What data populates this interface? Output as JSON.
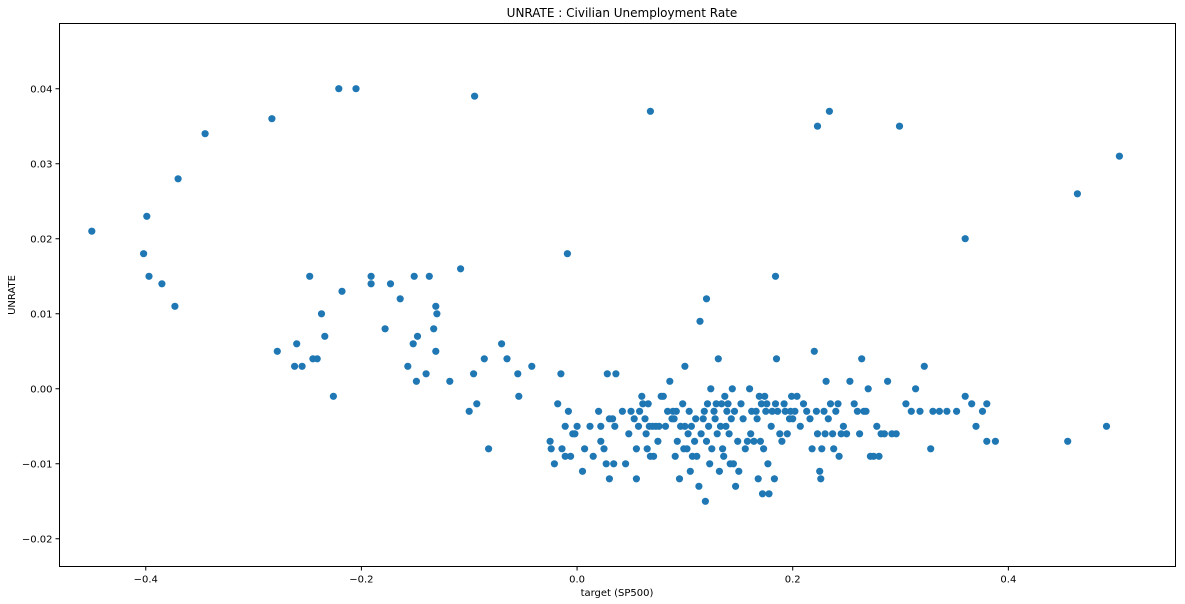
{
  "chart_data": {
    "type": "scatter",
    "title": "UNRATE :  Civilian Unemployment Rate",
    "xlabel": "target (SP500)",
    "ylabel": "UNRATE",
    "xlim": [
      -0.48,
      0.555
    ],
    "ylim": [
      -0.0237,
      0.0487
    ],
    "xticks": [
      -0.4,
      -0.2,
      0.0,
      0.2,
      0.4
    ],
    "xtick_labels": [
      "−0.4",
      "−0.2",
      "0.0",
      "0.2",
      "0.4"
    ],
    "yticks": [
      -0.02,
      -0.01,
      0.0,
      0.01,
      0.02,
      0.03,
      0.04
    ],
    "ytick_labels": [
      "−0.02",
      "−0.01",
      "0.00",
      "0.01",
      "0.02",
      "0.03",
      "0.04"
    ],
    "grid": false,
    "marker_color": "#1f77b4",
    "points": [
      [
        -0.45,
        0.021
      ],
      [
        -0.399,
        0.023
      ],
      [
        -0.402,
        0.018
      ],
      [
        -0.397,
        0.015
      ],
      [
        -0.385,
        0.014
      ],
      [
        -0.373,
        0.011
      ],
      [
        -0.37,
        0.028
      ],
      [
        -0.345,
        0.034
      ],
      [
        -0.283,
        0.036
      ],
      [
        -0.221,
        0.04
      ],
      [
        -0.205,
        0.04
      ],
      [
        -0.095,
        0.039
      ],
      [
        0.068,
        0.037
      ],
      [
        0.223,
        0.035
      ],
      [
        0.234,
        0.037
      ],
      [
        0.299,
        0.035
      ],
      [
        0.36,
        0.02
      ],
      [
        0.464,
        0.026
      ],
      [
        0.503,
        0.031
      ],
      [
        -0.248,
        0.015
      ],
      [
        -0.218,
        0.013
      ],
      [
        -0.191,
        0.015
      ],
      [
        -0.191,
        0.014
      ],
      [
        -0.173,
        0.014
      ],
      [
        -0.151,
        0.015
      ],
      [
        -0.137,
        0.015
      ],
      [
        -0.108,
        0.016
      ],
      [
        -0.009,
        0.018
      ],
      [
        0.12,
        0.012
      ],
      [
        0.114,
        0.009
      ],
      [
        0.184,
        0.015
      ],
      [
        -0.164,
        0.012
      ],
      [
        -0.131,
        0.011
      ],
      [
        -0.13,
        0.01
      ],
      [
        -0.133,
        0.008
      ],
      [
        -0.178,
        0.008
      ],
      [
        -0.148,
        0.007
      ],
      [
        -0.152,
        0.006
      ],
      [
        -0.237,
        0.01
      ],
      [
        -0.26,
        0.006
      ],
      [
        -0.234,
        0.007
      ],
      [
        -0.278,
        0.005
      ],
      [
        -0.245,
        0.004
      ],
      [
        -0.241,
        0.004
      ],
      [
        -0.262,
        0.003
      ],
      [
        -0.255,
        0.003
      ],
      [
        -0.226,
        -0.001
      ],
      [
        -0.157,
        0.003
      ],
      [
        -0.14,
        0.002
      ],
      [
        -0.131,
        0.005
      ],
      [
        -0.149,
        0.001
      ],
      [
        -0.118,
        0.001
      ],
      [
        -0.1,
        -0.003
      ],
      [
        -0.096,
        0.002
      ],
      [
        -0.093,
        -0.002
      ],
      [
        -0.086,
        0.004
      ],
      [
        -0.082,
        -0.008
      ],
      [
        -0.07,
        0.006
      ],
      [
        -0.065,
        0.004
      ],
      [
        -0.055,
        0.002
      ],
      [
        -0.054,
        -0.001
      ],
      [
        -0.042,
        0.003
      ],
      [
        -0.025,
        -0.007
      ],
      [
        -0.024,
        -0.008
      ],
      [
        -0.021,
        -0.01
      ],
      [
        -0.018,
        -0.002
      ],
      [
        -0.015,
        0.002
      ],
      [
        -0.014,
        -0.008
      ],
      [
        -0.011,
        -0.005
      ],
      [
        -0.011,
        -0.009
      ],
      [
        -0.008,
        -0.003
      ],
      [
        -0.006,
        -0.009
      ],
      [
        -0.004,
        -0.006
      ],
      [
        -0.002,
        -0.006
      ],
      [
        0.0,
        -0.005
      ],
      [
        0.005,
        -0.011
      ],
      [
        0.007,
        -0.008
      ],
      [
        0.012,
        -0.005
      ],
      [
        0.015,
        -0.009
      ],
      [
        0.02,
        -0.003
      ],
      [
        0.022,
        -0.005
      ],
      [
        0.022,
        -0.007
      ],
      [
        0.025,
        -0.008
      ],
      [
        0.027,
        -0.01
      ],
      [
        0.028,
        0.002
      ],
      [
        0.03,
        -0.004
      ],
      [
        0.03,
        -0.012
      ],
      [
        0.033,
        -0.004
      ],
      [
        0.034,
        -0.01
      ],
      [
        0.035,
        -0.005
      ],
      [
        0.036,
        0.002
      ],
      [
        0.042,
        -0.003
      ],
      [
        0.045,
        -0.01
      ],
      [
        0.048,
        -0.006
      ],
      [
        0.05,
        -0.003
      ],
      [
        0.053,
        -0.004
      ],
      [
        0.055,
        -0.012
      ],
      [
        0.055,
        -0.008
      ],
      [
        0.057,
        -0.005
      ],
      [
        0.058,
        -0.003
      ],
      [
        0.06,
        -0.001
      ],
      [
        0.061,
        -0.002
      ],
      [
        0.063,
        -0.004
      ],
      [
        0.064,
        -0.006
      ],
      [
        0.065,
        -0.008
      ],
      [
        0.066,
        -0.002
      ],
      [
        0.067,
        -0.005
      ],
      [
        0.068,
        -0.009
      ],
      [
        0.07,
        -0.005
      ],
      [
        0.071,
        -0.009
      ],
      [
        0.073,
        -0.005
      ],
      [
        0.075,
        -0.007
      ],
      [
        0.076,
        -0.005
      ],
      [
        0.078,
        -0.001
      ],
      [
        0.08,
        -0.001
      ],
      [
        0.082,
        -0.005
      ],
      [
        0.084,
        -0.003
      ],
      [
        0.086,
        0.001
      ],
      [
        0.088,
        -0.004
      ],
      [
        0.089,
        -0.003
      ],
      [
        0.09,
        -0.004
      ],
      [
        0.091,
        -0.009
      ],
      [
        0.092,
        -0.003
      ],
      [
        0.093,
        -0.007
      ],
      [
        0.095,
        -0.012
      ],
      [
        0.096,
        -0.005
      ],
      [
        0.098,
        -0.002
      ],
      [
        0.099,
        -0.008
      ],
      [
        0.1,
        -0.005
      ],
      [
        0.1,
        0.003
      ],
      [
        0.102,
        -0.008
      ],
      [
        0.103,
        -0.006
      ],
      [
        0.104,
        -0.003
      ],
      [
        0.105,
        -0.011
      ],
      [
        0.106,
        -0.005
      ],
      [
        0.107,
        -0.009
      ],
      [
        0.109,
        -0.007
      ],
      [
        0.11,
        -0.004
      ],
      [
        0.111,
        -0.009
      ],
      [
        0.113,
        -0.013
      ],
      [
        0.115,
        -0.006
      ],
      [
        0.117,
        -0.004
      ],
      [
        0.118,
        -0.003
      ],
      [
        0.119,
        -0.015
      ],
      [
        0.12,
        -0.007
      ],
      [
        0.121,
        -0.002
      ],
      [
        0.122,
        -0.005
      ],
      [
        0.123,
        -0.01
      ],
      [
        0.124,
        0.0
      ],
      [
        0.125,
        -0.008
      ],
      [
        0.127,
        -0.003
      ],
      [
        0.128,
        -0.004
      ],
      [
        0.129,
        -0.002
      ],
      [
        0.13,
        -0.006
      ],
      [
        0.131,
        0.004
      ],
      [
        0.132,
        -0.011
      ],
      [
        0.133,
        -0.005
      ],
      [
        0.134,
        -0.002
      ],
      [
        0.135,
        -0.008
      ],
      [
        0.136,
        -0.009
      ],
      [
        0.137,
        -0.001
      ],
      [
        0.138,
        -0.005
      ],
      [
        0.139,
        -0.003
      ],
      [
        0.14,
        -0.002
      ],
      [
        0.141,
        -0.006
      ],
      [
        0.142,
        -0.01
      ],
      [
        0.143,
        -0.004
      ],
      [
        0.144,
        0.0
      ],
      [
        0.145,
        -0.01
      ],
      [
        0.146,
        -0.003
      ],
      [
        0.147,
        -0.013
      ],
      [
        0.149,
        -0.007
      ],
      [
        0.15,
        -0.011
      ],
      [
        0.152,
        -0.002
      ],
      [
        0.154,
        -0.004
      ],
      [
        0.156,
        -0.008
      ],
      [
        0.158,
        -0.007
      ],
      [
        0.16,
        0.0
      ],
      [
        0.161,
        -0.006
      ],
      [
        0.162,
        -0.003
      ],
      [
        0.164,
        -0.007
      ],
      [
        0.166,
        -0.003
      ],
      [
        0.167,
        -0.004
      ],
      [
        0.168,
        -0.012
      ],
      [
        0.169,
        -0.001
      ],
      [
        0.17,
        -0.007
      ],
      [
        0.171,
        -0.002
      ],
      [
        0.172,
        -0.014
      ],
      [
        0.173,
        -0.008
      ],
      [
        0.174,
        -0.001
      ],
      [
        0.175,
        -0.003
      ],
      [
        0.176,
        -0.002
      ],
      [
        0.177,
        -0.01
      ],
      [
        0.178,
        -0.014
      ],
      [
        0.18,
        -0.005
      ],
      [
        0.181,
        -0.003
      ],
      [
        0.183,
        -0.012
      ],
      [
        0.184,
        -0.002
      ],
      [
        0.185,
        0.004
      ],
      [
        0.186,
        -0.003
      ],
      [
        0.188,
        -0.006
      ],
      [
        0.19,
        -0.007
      ],
      [
        0.192,
        -0.002
      ],
      [
        0.193,
        -0.003
      ],
      [
        0.195,
        -0.006
      ],
      [
        0.197,
        -0.004
      ],
      [
        0.198,
        -0.003
      ],
      [
        0.199,
        -0.001
      ],
      [
        0.2,
        -0.004
      ],
      [
        0.202,
        -0.003
      ],
      [
        0.204,
        -0.001
      ],
      [
        0.207,
        -0.005
      ],
      [
        0.21,
        -0.002
      ],
      [
        0.213,
        -0.003
      ],
      [
        0.216,
        -0.004
      ],
      [
        0.218,
        -0.008
      ],
      [
        0.22,
        0.005
      ],
      [
        0.222,
        -0.003
      ],
      [
        0.223,
        -0.006
      ],
      [
        0.225,
        -0.011
      ],
      [
        0.226,
        -0.012
      ],
      [
        0.227,
        -0.008
      ],
      [
        0.229,
        -0.003
      ],
      [
        0.23,
        -0.006
      ],
      [
        0.231,
        0.001
      ],
      [
        0.233,
        -0.004
      ],
      [
        0.235,
        -0.002
      ],
      [
        0.237,
        -0.006
      ],
      [
        0.238,
        -0.008
      ],
      [
        0.24,
        -0.003
      ],
      [
        0.242,
        -0.002
      ],
      [
        0.243,
        -0.009
      ],
      [
        0.245,
        -0.006
      ],
      [
        0.247,
        -0.005
      ],
      [
        0.25,
        -0.006
      ],
      [
        0.253,
        0.001
      ],
      [
        0.257,
        -0.002
      ],
      [
        0.26,
        -0.003
      ],
      [
        0.262,
        -0.006
      ],
      [
        0.264,
        0.004
      ],
      [
        0.266,
        -0.003
      ],
      [
        0.268,
        -0.003
      ],
      [
        0.27,
        0.0
      ],
      [
        0.272,
        -0.009
      ],
      [
        0.275,
        -0.009
      ],
      [
        0.278,
        -0.005
      ],
      [
        0.28,
        -0.009
      ],
      [
        0.282,
        -0.006
      ],
      [
        0.285,
        -0.006
      ],
      [
        0.288,
        0.001
      ],
      [
        0.292,
        -0.006
      ],
      [
        0.296,
        -0.006
      ],
      [
        0.305,
        -0.002
      ],
      [
        0.31,
        -0.003
      ],
      [
        0.314,
        0.0
      ],
      [
        0.318,
        -0.003
      ],
      [
        0.322,
        0.003
      ],
      [
        0.328,
        -0.008
      ],
      [
        0.33,
        -0.003
      ],
      [
        0.336,
        -0.003
      ],
      [
        0.343,
        -0.003
      ],
      [
        0.352,
        -0.003
      ],
      [
        0.36,
        -0.001
      ],
      [
        0.366,
        -0.002
      ],
      [
        0.37,
        -0.005
      ],
      [
        0.376,
        -0.003
      ],
      [
        0.38,
        -0.002
      ],
      [
        0.38,
        -0.007
      ],
      [
        0.388,
        -0.007
      ],
      [
        0.455,
        -0.007
      ],
      [
        0.491,
        -0.005
      ]
    ]
  }
}
